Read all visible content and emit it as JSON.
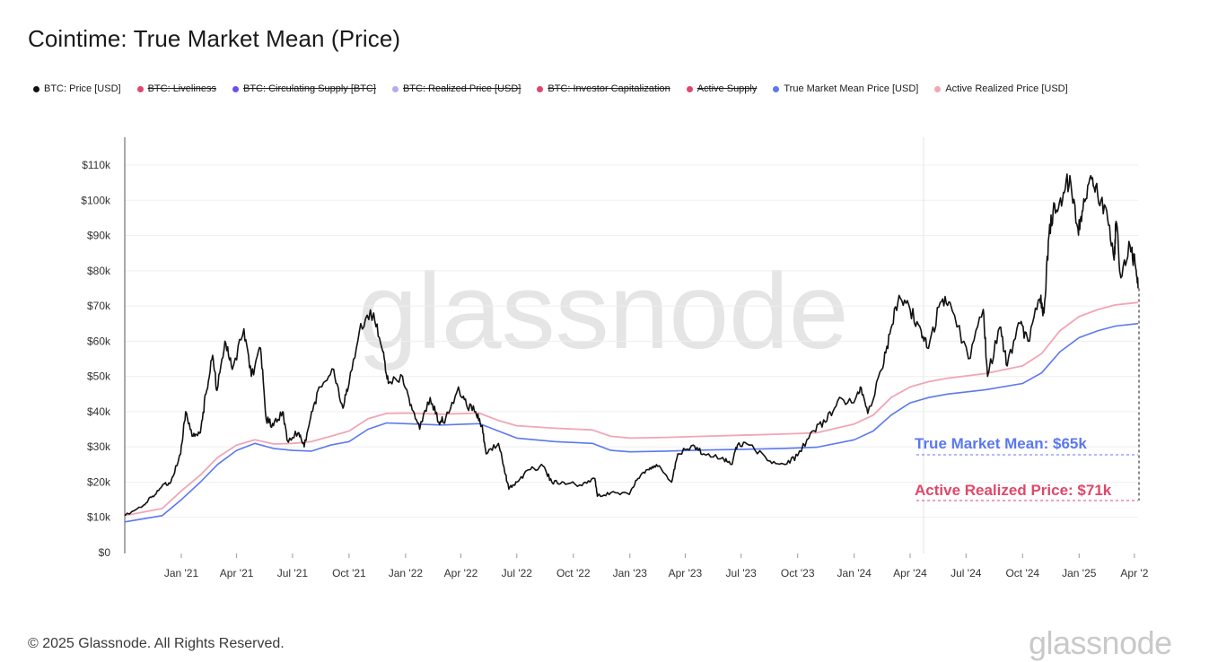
{
  "header": {
    "title": "Cointime: True Market Mean (Price)"
  },
  "legend": [
    {
      "label": "BTC: Price [USD]",
      "color": "#111111",
      "active": true
    },
    {
      "label": "BTC: Liveliness",
      "color": "#e0476a",
      "active": false
    },
    {
      "label": "BTC: Circulating Supply [BTC]",
      "color": "#6f4ee8",
      "active": false
    },
    {
      "label": "BTC: Realized Price [USD]",
      "color": "#b9a8f2",
      "active": false
    },
    {
      "label": "BTC: Investor Capitalization",
      "color": "#e0476a",
      "active": false
    },
    {
      "label": "Active Supply",
      "color": "#e0476a",
      "active": true
    },
    {
      "label": "True Market Mean Price [USD]",
      "color": "#5b78f0",
      "active": true
    },
    {
      "label": "Active Realized Price [USD]",
      "color": "#f0a6b5",
      "active": true
    }
  ],
  "watermark": "glassnode",
  "annotations": [
    {
      "text": "True Market Mean: $65k",
      "color": "#5b78f0"
    },
    {
      "text": "Active Realized Price: $71k",
      "color": "#e0476a"
    }
  ],
  "chart_data": {
    "type": "line",
    "yticks": [
      "$0",
      "$10k",
      "$20k",
      "$30k",
      "$40k",
      "$50k",
      "$60k",
      "$70k",
      "$80k",
      "$90k",
      "$100k",
      "$110k"
    ],
    "xticks": [
      "Jan '21",
      "Apr '21",
      "Jul '21",
      "Oct '21",
      "Jan '22",
      "Apr '22",
      "Jul '22",
      "Oct '22",
      "Jan '23",
      "Apr '23",
      "Jul '23",
      "Oct '23",
      "Jan '24",
      "Apr '24",
      "Jul '24",
      "Oct '24",
      "Jan '25",
      "Apr '2"
    ],
    "ylim": [
      0,
      110000
    ],
    "xlim": [
      "2020-10-01",
      "2025-04-07"
    ],
    "colors": {
      "price": "#111111",
      "tmm": "#5b78f0",
      "arp": "#f0a6b5"
    },
    "series": [
      {
        "name": "BTC: Price [USD]",
        "points": [
          [
            "2020-10-01",
            10500
          ],
          [
            "2020-11-01",
            13500
          ],
          [
            "2020-11-15",
            16000
          ],
          [
            "2020-12-01",
            19000
          ],
          [
            "2020-12-15",
            20000
          ],
          [
            "2020-12-31",
            28000
          ],
          [
            "2021-01-08",
            40000
          ],
          [
            "2021-01-20",
            33000
          ],
          [
            "2021-02-01",
            34000
          ],
          [
            "2021-02-10",
            45000
          ],
          [
            "2021-02-21",
            56000
          ],
          [
            "2021-02-28",
            46000
          ],
          [
            "2021-03-13",
            60000
          ],
          [
            "2021-03-25",
            52000
          ],
          [
            "2021-04-13",
            63500
          ],
          [
            "2021-04-25",
            50000
          ],
          [
            "2021-05-10",
            58000
          ],
          [
            "2021-05-19",
            38000
          ],
          [
            "2021-05-31",
            36000
          ],
          [
            "2021-06-15",
            40000
          ],
          [
            "2021-06-22",
            32000
          ],
          [
            "2021-07-10",
            34000
          ],
          [
            "2021-07-20",
            30000
          ],
          [
            "2021-08-01",
            40000
          ],
          [
            "2021-08-15",
            47000
          ],
          [
            "2021-09-06",
            52000
          ],
          [
            "2021-09-21",
            41000
          ],
          [
            "2021-10-01",
            48000
          ],
          [
            "2021-10-20",
            65000
          ],
          [
            "2021-11-10",
            68000
          ],
          [
            "2021-11-25",
            57000
          ],
          [
            "2021-12-04",
            48000
          ],
          [
            "2021-12-27",
            50000
          ],
          [
            "2022-01-10",
            42000
          ],
          [
            "2022-01-24",
            35000
          ],
          [
            "2022-02-10",
            44000
          ],
          [
            "2022-02-24",
            37000
          ],
          [
            "2022-03-07",
            38000
          ],
          [
            "2022-03-28",
            47000
          ],
          [
            "2022-04-10",
            42000
          ],
          [
            "2022-04-25",
            40000
          ],
          [
            "2022-05-05",
            36000
          ],
          [
            "2022-05-12",
            28000
          ],
          [
            "2022-06-01",
            31000
          ],
          [
            "2022-06-13",
            22000
          ],
          [
            "2022-06-18",
            18000
          ],
          [
            "2022-07-01",
            20000
          ],
          [
            "2022-07-20",
            23500
          ],
          [
            "2022-08-13",
            24500
          ],
          [
            "2022-08-27",
            20000
          ],
          [
            "2022-09-15",
            20000
          ],
          [
            "2022-10-15",
            19000
          ],
          [
            "2022-11-05",
            21000
          ],
          [
            "2022-11-09",
            16000
          ],
          [
            "2022-12-01",
            17000
          ],
          [
            "2022-12-31",
            16500
          ],
          [
            "2023-01-14",
            21000
          ],
          [
            "2023-02-01",
            23500
          ],
          [
            "2023-02-15",
            24500
          ],
          [
            "2023-03-10",
            20000
          ],
          [
            "2023-03-20",
            28000
          ],
          [
            "2023-04-14",
            30500
          ],
          [
            "2023-05-01",
            28000
          ],
          [
            "2023-06-01",
            27000
          ],
          [
            "2023-06-15",
            25000
          ],
          [
            "2023-06-25",
            30500
          ],
          [
            "2023-07-15",
            30500
          ],
          [
            "2023-08-17",
            26000
          ],
          [
            "2023-09-11",
            25000
          ],
          [
            "2023-10-01",
            27500
          ],
          [
            "2023-10-25",
            34500
          ],
          [
            "2023-11-15",
            37000
          ],
          [
            "2023-12-05",
            43000
          ],
          [
            "2023-12-31",
            42500
          ],
          [
            "2024-01-11",
            47000
          ],
          [
            "2024-01-23",
            39500
          ],
          [
            "2024-02-15",
            52000
          ],
          [
            "2024-02-28",
            62000
          ],
          [
            "2024-03-14",
            73000
          ],
          [
            "2024-04-01",
            69000
          ],
          [
            "2024-04-19",
            63000
          ],
          [
            "2024-05-01",
            58000
          ],
          [
            "2024-05-20",
            71000
          ],
          [
            "2024-06-05",
            71000
          ],
          [
            "2024-07-05",
            55000
          ],
          [
            "2024-07-29",
            69000
          ],
          [
            "2024-08-05",
            50000
          ],
          [
            "2024-08-25",
            64000
          ],
          [
            "2024-09-06",
            53000
          ],
          [
            "2024-09-27",
            65000
          ],
          [
            "2024-10-10",
            60000
          ],
          [
            "2024-10-29",
            72000
          ],
          [
            "2024-11-05",
            68000
          ],
          [
            "2024-11-13",
            90000
          ],
          [
            "2024-11-22",
            99000
          ],
          [
            "2024-12-05",
            100000
          ],
          [
            "2024-12-17",
            107000
          ],
          [
            "2024-12-30",
            92000
          ],
          [
            "2025-01-07",
            97000
          ],
          [
            "2025-01-20",
            107000
          ],
          [
            "2025-01-31",
            102000
          ],
          [
            "2025-02-15",
            97000
          ],
          [
            "2025-02-27",
            83000
          ],
          [
            "2025-03-02",
            94000
          ],
          [
            "2025-03-10",
            78000
          ],
          [
            "2025-03-25",
            87000
          ],
          [
            "2025-04-02",
            82000
          ],
          [
            "2025-04-07",
            75000
          ]
        ]
      },
      {
        "name": "True Market Mean Price [USD]",
        "points": [
          [
            "2020-10-01",
            8700
          ],
          [
            "2020-12-01",
            10500
          ],
          [
            "2021-01-01",
            15000
          ],
          [
            "2021-02-01",
            20000
          ],
          [
            "2021-03-01",
            25000
          ],
          [
            "2021-04-01",
            29000
          ],
          [
            "2021-05-01",
            31000
          ],
          [
            "2021-06-01",
            29500
          ],
          [
            "2021-07-01",
            29000
          ],
          [
            "2021-08-01",
            28800
          ],
          [
            "2021-09-01",
            30500
          ],
          [
            "2021-10-01",
            31500
          ],
          [
            "2021-11-01",
            35000
          ],
          [
            "2021-12-01",
            36800
          ],
          [
            "2022-01-01",
            36600
          ],
          [
            "2022-03-01",
            36200
          ],
          [
            "2022-05-01",
            36600
          ],
          [
            "2022-06-01",
            34500
          ],
          [
            "2022-07-01",
            32500
          ],
          [
            "2022-09-01",
            31500
          ],
          [
            "2022-11-01",
            31000
          ],
          [
            "2022-12-01",
            29000
          ],
          [
            "2023-01-01",
            28600
          ],
          [
            "2023-03-01",
            28800
          ],
          [
            "2023-05-01",
            29100
          ],
          [
            "2023-07-01",
            29300
          ],
          [
            "2023-09-01",
            29500
          ],
          [
            "2023-11-01",
            29900
          ],
          [
            "2024-01-01",
            32000
          ],
          [
            "2024-02-01",
            34500
          ],
          [
            "2024-03-01",
            39000
          ],
          [
            "2024-04-01",
            42500
          ],
          [
            "2024-05-01",
            44000
          ],
          [
            "2024-06-01",
            45000
          ],
          [
            "2024-08-01",
            46200
          ],
          [
            "2024-10-01",
            48000
          ],
          [
            "2024-11-01",
            51000
          ],
          [
            "2024-12-01",
            57000
          ],
          [
            "2025-01-01",
            61000
          ],
          [
            "2025-02-01",
            63000
          ],
          [
            "2025-03-01",
            64300
          ],
          [
            "2025-04-07",
            65000
          ]
        ]
      },
      {
        "name": "Active Realized Price [USD]",
        "points": [
          [
            "2020-10-01",
            10500
          ],
          [
            "2020-12-01",
            12500
          ],
          [
            "2021-01-01",
            17500
          ],
          [
            "2021-02-01",
            22000
          ],
          [
            "2021-03-01",
            27000
          ],
          [
            "2021-04-01",
            30500
          ],
          [
            "2021-05-01",
            32000
          ],
          [
            "2021-06-01",
            30800
          ],
          [
            "2021-07-01",
            31000
          ],
          [
            "2021-08-01",
            31500
          ],
          [
            "2021-09-01",
            33000
          ],
          [
            "2021-10-01",
            34500
          ],
          [
            "2021-11-01",
            38000
          ],
          [
            "2021-12-01",
            39500
          ],
          [
            "2022-01-01",
            39600
          ],
          [
            "2022-03-01",
            39300
          ],
          [
            "2022-05-01",
            39600
          ],
          [
            "2022-06-01",
            37500
          ],
          [
            "2022-07-01",
            36000
          ],
          [
            "2022-09-01",
            35300
          ],
          [
            "2022-11-01",
            34800
          ],
          [
            "2022-12-01",
            33000
          ],
          [
            "2023-01-01",
            32500
          ],
          [
            "2023-03-01",
            32700
          ],
          [
            "2023-05-01",
            33000
          ],
          [
            "2023-07-01",
            33300
          ],
          [
            "2023-09-01",
            33600
          ],
          [
            "2023-11-01",
            34000
          ],
          [
            "2024-01-01",
            36500
          ],
          [
            "2024-02-01",
            39000
          ],
          [
            "2024-03-01",
            44000
          ],
          [
            "2024-04-01",
            47000
          ],
          [
            "2024-05-01",
            48500
          ],
          [
            "2024-06-01",
            49500
          ],
          [
            "2024-08-01",
            50800
          ],
          [
            "2024-10-01",
            53000
          ],
          [
            "2024-11-01",
            56500
          ],
          [
            "2024-12-01",
            63000
          ],
          [
            "2025-01-01",
            67000
          ],
          [
            "2025-02-01",
            69000
          ],
          [
            "2025-03-01",
            70300
          ],
          [
            "2025-04-07",
            71000
          ]
        ]
      }
    ]
  },
  "footer": {
    "copyright": "© 2025 Glassnode. All Rights Reserved.",
    "logo": "glassnode"
  }
}
